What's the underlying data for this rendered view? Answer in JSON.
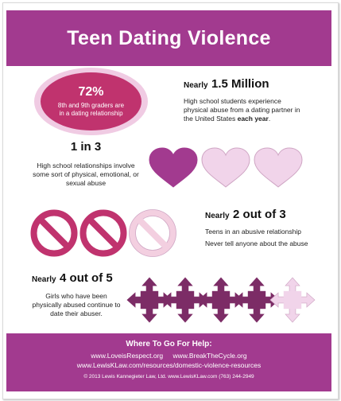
{
  "header": {
    "title": "Teen Dating Violence"
  },
  "stat1": {
    "percent": "72%",
    "text": "8th and 9th graders are in a dating relationship"
  },
  "stat2": {
    "prefix": "Nearly",
    "value": "1.5 Million",
    "desc_main": "High school students experience physical abuse from a dating partner in the United States",
    "desc_emph": "each year",
    "desc_end": "."
  },
  "stat3": {
    "value": "1 in 3",
    "desc": "High school relationships involve some sort of physical, emotional, or sexual abuse",
    "icons": [
      {
        "icon": "heart-icon",
        "filled": true
      },
      {
        "icon": "heart-icon",
        "filled": false
      },
      {
        "icon": "heart-icon",
        "filled": false
      }
    ]
  },
  "stat4": {
    "prefix": "Nearly",
    "value": "2 out of 3",
    "desc1": "Teens in an abusive relationship",
    "desc2": "Never tell anyone about the abuse",
    "icons": [
      {
        "icon": "prohibited-icon",
        "filled": true
      },
      {
        "icon": "prohibited-icon",
        "filled": true
      },
      {
        "icon": "prohibited-icon",
        "filled": false
      }
    ]
  },
  "stat5": {
    "prefix": "Nearly",
    "value": "4 out of 5",
    "desc": "Girls who have been physically abused continue to date their abuser.",
    "icons": [
      {
        "icon": "four-arrows-icon",
        "filled": true
      },
      {
        "icon": "four-arrows-icon",
        "filled": true
      },
      {
        "icon": "four-arrows-icon",
        "filled": true
      },
      {
        "icon": "four-arrows-icon",
        "filled": true
      },
      {
        "icon": "four-arrows-icon",
        "filled": false
      }
    ]
  },
  "footer": {
    "title": "Where To Go For Help:",
    "link1": "www.LoveisRespect.org",
    "link2": "www.BreakTheCycle.org",
    "link3": "www.LewisKLaw.com/resources/domestic-violence-resources",
    "copyright": "© 2013  Lewis Kannegieter Law, Ltd.  www.LewisKLaw.com  (763) 244-2949"
  },
  "colors": {
    "brand": "#a23a8f",
    "ellipse_inner": "#c0336e",
    "ellipse_outer": "#f0cbe3",
    "heart_filled": "#a23a8f",
    "heart_light": "#f1d4ea",
    "no_filled": "#c0336e",
    "no_light": "#f3cfe0",
    "arrow_filled": "#7c2c66",
    "arrow_light": "#f1d4ea"
  }
}
